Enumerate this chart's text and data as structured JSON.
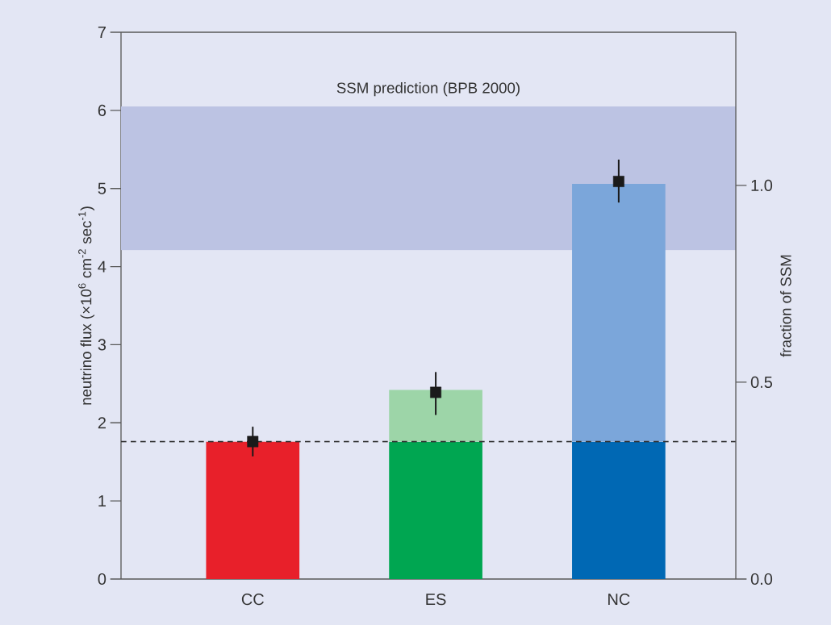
{
  "chart_data": {
    "type": "bar",
    "stacked": true,
    "categories": [
      "CC",
      "ES",
      "NC"
    ],
    "series": [
      {
        "colors": [
          "#e8202a",
          "#00a651",
          "#0068b4"
        ],
        "values": [
          1.76,
          1.76,
          1.76
        ]
      },
      {
        "colors": [
          "#e8202a",
          "#9dd5a8",
          "#7ba6da"
        ],
        "values": [
          null,
          0.66,
          3.3
        ]
      },
      {
        "type": "scatter",
        "x": [
          "CC",
          "ES",
          "NC"
        ],
        "values": [
          1.76,
          2.39,
          5.09
        ],
        "errors": [
          0.19,
          [
            2.1,
            2.65
          ],
          [
            4.82,
            5.37
          ]
        ],
        "marker": "square",
        "color": "#1a1a1a"
      }
    ],
    "ylabel": "neutrino flux (×10$^{6}$ cm$^{-2}$ sec$^{-1}$)",
    "y2label": "fraction of SSM",
    "ylim": [
      0,
      7
    ],
    "yticks": [
      0,
      1,
      2,
      3,
      4,
      5,
      6,
      7
    ],
    "y2lim": [
      0,
      1.389
    ],
    "y2ticks": [
      {
        "value": 0,
        "label": "0.0"
      },
      {
        "value": 0.5,
        "label": "0.5"
      },
      {
        "value": 1,
        "label": "1.0"
      }
    ],
    "ref_lines": [
      {
        "axis": "y",
        "value": 1.76,
        "line_style": "dashed",
        "color": "#333333"
      }
    ],
    "bands": [
      {
        "axis": "y",
        "from": 4.21,
        "to": 6.05,
        "label": "SSM prediction (BPB 2000)",
        "color": "#bcc3e3"
      }
    ]
  }
}
